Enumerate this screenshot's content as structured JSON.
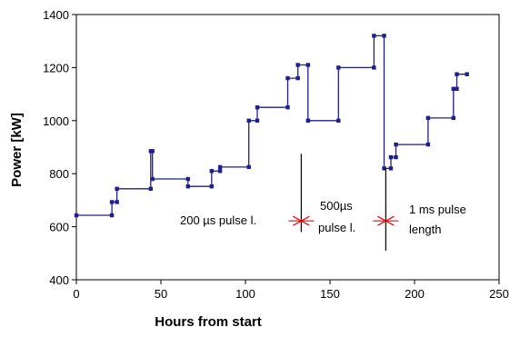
{
  "chart_data": {
    "type": "line",
    "step": true,
    "xlabel": "Hours from start",
    "ylabel": "Power [kW]",
    "xlim": [
      0,
      250
    ],
    "ylim": [
      400,
      1400
    ],
    "xticks": [
      0,
      50,
      100,
      150,
      200,
      250
    ],
    "yticks": [
      400,
      600,
      800,
      1000,
      1200,
      1400
    ],
    "grid": false,
    "legend": "none",
    "series": [
      {
        "color": "#1f1f8c",
        "points": [
          [
            0,
            643
          ],
          [
            21,
            643
          ],
          [
            21,
            693
          ],
          [
            24,
            693
          ],
          [
            24,
            743
          ],
          [
            44,
            743
          ],
          [
            44,
            885
          ],
          [
            45,
            885
          ],
          [
            45,
            780
          ],
          [
            66,
            780
          ],
          [
            66,
            752
          ],
          [
            80,
            752
          ],
          [
            80,
            810
          ],
          [
            85,
            810
          ],
          [
            85,
            825
          ],
          [
            102,
            825
          ],
          [
            102,
            1000
          ],
          [
            107,
            1000
          ],
          [
            107,
            1050
          ],
          [
            125,
            1050
          ],
          [
            125,
            1160
          ],
          [
            131,
            1160
          ],
          [
            131,
            1210
          ],
          [
            137,
            1210
          ],
          [
            137,
            1000
          ],
          [
            155,
            1000
          ],
          [
            155,
            1200
          ],
          [
            176,
            1200
          ],
          [
            176,
            1320
          ],
          [
            182,
            1320
          ],
          [
            182,
            820
          ],
          [
            186,
            820
          ],
          [
            186,
            862
          ],
          [
            189,
            862
          ],
          [
            189,
            910
          ],
          [
            208,
            910
          ],
          [
            208,
            1010
          ],
          [
            223,
            1010
          ],
          [
            223,
            1120
          ],
          [
            225,
            1120
          ],
          [
            225,
            1175
          ],
          [
            231,
            1175
          ]
        ]
      }
    ],
    "annotations": [
      {
        "text": "200 µs pulse l."
      },
      {
        "text": "500µs"
      },
      {
        "text": "pulse l."
      },
      {
        "text": "1 ms pulse"
      },
      {
        "text": "length"
      }
    ],
    "transitions": [
      {
        "x": 133,
        "y_top": 875,
        "y_bottom": 580,
        "marker_y": 622
      },
      {
        "x": 183,
        "y_top": 822,
        "y_bottom": 510,
        "marker_y": 622
      }
    ],
    "marker_color": "#ff0000"
  }
}
